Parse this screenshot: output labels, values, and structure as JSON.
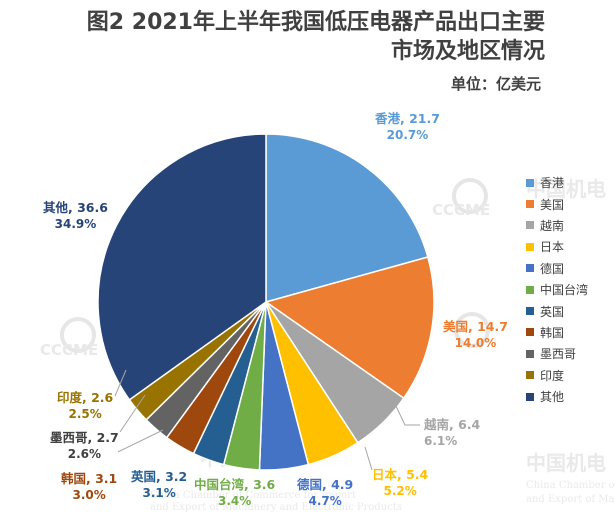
{
  "title": {
    "line1": "图2  2021年上半年我国低压电器产品出口主要",
    "line2": "市场及地区情况"
  },
  "unit": "单位：亿美元",
  "watermark": {
    "brand": "CCCME",
    "cn": "中国机电",
    "en1": "China Chamber of Commerce for Import",
    "en2": "and Export of Machinery and Electronic Products"
  },
  "chart_data": {
    "type": "pie",
    "title": "图2  2021年上半年我国低压电器产品出口主要市场及地区情况",
    "unit": "单位：亿美元",
    "legend_position": "right",
    "slices": [
      {
        "name": "香港",
        "value": 21.7,
        "percent": "20.7%",
        "color": "#5B9BD5",
        "label": "香港, 21.7"
      },
      {
        "name": "美国",
        "value": 14.7,
        "percent": "14.0%",
        "color": "#ED7D31",
        "label": "美国, 14.7"
      },
      {
        "name": "越南",
        "value": 6.4,
        "percent": "6.1%",
        "color": "#A5A5A5",
        "label": "越南, 6.4"
      },
      {
        "name": "日本",
        "value": 5.4,
        "percent": "5.2%",
        "color": "#FFC000",
        "label": "日本, 5.4"
      },
      {
        "name": "德国",
        "value": 4.9,
        "percent": "4.7%",
        "color": "#4472C4",
        "label": "德国, 4.9"
      },
      {
        "name": "中国台湾",
        "value": 3.6,
        "percent": "3.4%",
        "color": "#70AD47",
        "label": "中国台湾, 3.6"
      },
      {
        "name": "英国",
        "value": 3.2,
        "percent": "3.1%",
        "color": "#255E91",
        "label": "英国, 3.2"
      },
      {
        "name": "韩国",
        "value": 3.1,
        "percent": "3.0%",
        "color": "#9E480E",
        "label": "韩国, 3.1"
      },
      {
        "name": "墨西哥",
        "value": 2.7,
        "percent": "2.6%",
        "color": "#636363",
        "label": "墨西哥, 2.7"
      },
      {
        "name": "印度",
        "value": 2.6,
        "percent": "2.5%",
        "color": "#997300",
        "label": "印度, 2.6"
      },
      {
        "name": "其他",
        "value": 36.6,
        "percent": "34.9%",
        "color": "#264478",
        "label": "其他, 36.6"
      }
    ],
    "label_colors": {
      "香港": "#5B9BD5",
      "美国": "#ED7D31",
      "越南": "#A5A5A5",
      "日本": "#FFC000",
      "德国": "#4472C4",
      "中国台湾": "#70AD47",
      "英国": "#255E91",
      "韩国": "#9E480E",
      "墨西哥": "#404040",
      "印度": "#997300",
      "其他": "#264478"
    }
  }
}
